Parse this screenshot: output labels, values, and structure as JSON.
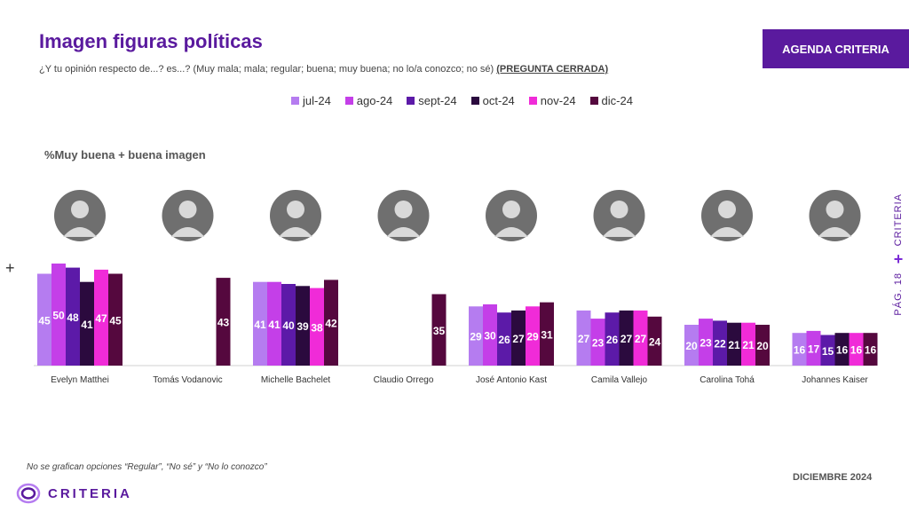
{
  "header": {
    "title": "Imagen figuras políticas",
    "subtitle": "¿Y tu opinión respecto de...? es...? (Muy mala; mala; regular; buena; muy buena; no lo/a conozco; no sé)",
    "subtitle_closed": "(PREGUNTA CERRADA)",
    "agenda_label": "AGENDA CRITERIA",
    "metric_label": "%Muy buena + buena imagen"
  },
  "side": {
    "brand": "CRITERIA",
    "page": "PÁG. 18"
  },
  "footer": {
    "note": "No se grafican opciones “Regular”, “No sé” y “No lo conozco”",
    "date": "DICIEMBRE 2024",
    "logo": "CRITERIA"
  },
  "colors": {
    "title": "#5a1a9e",
    "series": [
      "#b57cf0",
      "#c43fe8",
      "#5c1aa8",
      "#2b0a3e",
      "#f02bd8",
      "#55083e"
    ]
  },
  "chart_data": {
    "type": "bar",
    "ylim": [
      0,
      55
    ],
    "categories": [
      "Evelyn Matthei",
      "Tomás Vodanovic",
      "Michelle Bachelet",
      "Claudio Orrego",
      "José Antonio Kast",
      "Camila Vallejo",
      "Carolina Tohá",
      "Johannes Kaiser"
    ],
    "series": [
      {
        "name": "jul-24",
        "values": [
          45,
          null,
          41,
          null,
          29,
          27,
          20,
          16
        ]
      },
      {
        "name": "ago-24",
        "values": [
          50,
          null,
          41,
          null,
          30,
          23,
          23,
          17
        ]
      },
      {
        "name": "sept-24",
        "values": [
          48,
          null,
          40,
          null,
          26,
          26,
          22,
          15
        ]
      },
      {
        "name": "oct-24",
        "values": [
          41,
          null,
          39,
          null,
          27,
          27,
          21,
          16
        ]
      },
      {
        "name": "nov-24",
        "values": [
          47,
          null,
          38,
          null,
          29,
          27,
          21,
          16
        ]
      },
      {
        "name": "dic-24",
        "values": [
          45,
          43,
          42,
          35,
          31,
          24,
          20,
          16
        ]
      }
    ]
  }
}
